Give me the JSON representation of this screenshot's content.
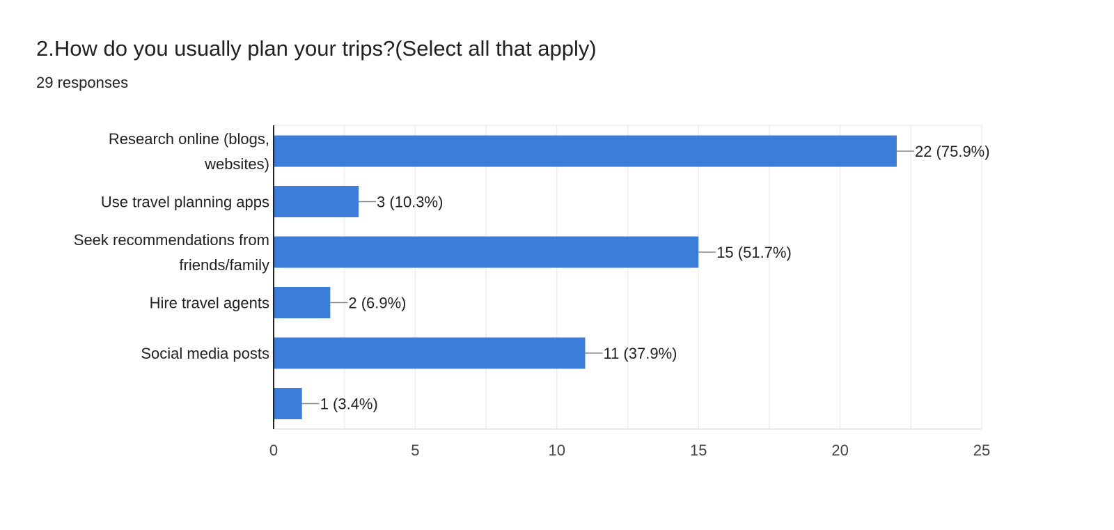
{
  "question": {
    "title": "2.How do you usually plan your trips?(Select all that apply)",
    "responses": "29 responses"
  },
  "chart_data": {
    "type": "bar",
    "orientation": "horizontal",
    "categories": [
      [
        "Research online (blogs,",
        "websites)"
      ],
      [
        "Use travel planning apps"
      ],
      [
        "Seek recommendations from",
        "friends/family"
      ],
      [
        "Hire travel agents"
      ],
      [
        "Social media posts"
      ],
      []
    ],
    "values": [
      22,
      3,
      15,
      2,
      11,
      1
    ],
    "data_labels": [
      "22 (75.9%)",
      "3 (10.3%)",
      "15 (51.7%)",
      "2 (6.9%)",
      "11 (37.9%)",
      "1 (3.4%)"
    ],
    "xticks": [
      0,
      5,
      10,
      15,
      20,
      25
    ],
    "xlim": [
      0,
      25
    ],
    "grid": true,
    "bar_color": "#3b7dd8"
  }
}
